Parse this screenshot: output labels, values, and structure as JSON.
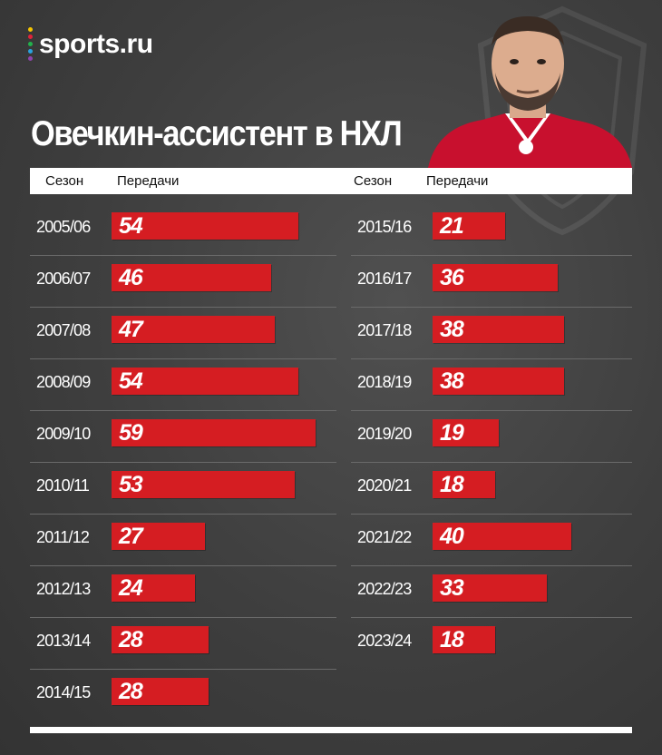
{
  "brand": {
    "name": "sports.ru",
    "dot_colors": [
      "#f5c400",
      "#e0233a",
      "#22b24c",
      "#2aa3df",
      "#8e44ad"
    ]
  },
  "title": "Овечкин-ассистент в НХЛ",
  "colors": {
    "bar": "#d51d22",
    "background": "#404040",
    "header": "#ffffff"
  },
  "header": {
    "left_season": "Сезон",
    "left_assists": "Передачи",
    "right_season": "Сезон",
    "right_assists": "Передачи"
  },
  "chart_data": {
    "type": "bar",
    "orientation": "horizontal",
    "title": "Овечкин-ассистент в НХЛ",
    "xlabel": "Передачи",
    "ylabel": "Сезон",
    "xlim": [
      0,
      60
    ],
    "categories": [
      "2005/06",
      "2006/07",
      "2007/08",
      "2008/09",
      "2009/10",
      "2010/11",
      "2011/12",
      "2012/13",
      "2013/14",
      "2014/15",
      "2015/16",
      "2016/17",
      "2017/18",
      "2018/19",
      "2019/20",
      "2020/21",
      "2021/22",
      "2022/23",
      "2023/24"
    ],
    "values": [
      54,
      46,
      47,
      54,
      59,
      53,
      27,
      24,
      28,
      28,
      21,
      36,
      38,
      38,
      19,
      18,
      40,
      33,
      18
    ],
    "grid": false,
    "legend": "none"
  }
}
